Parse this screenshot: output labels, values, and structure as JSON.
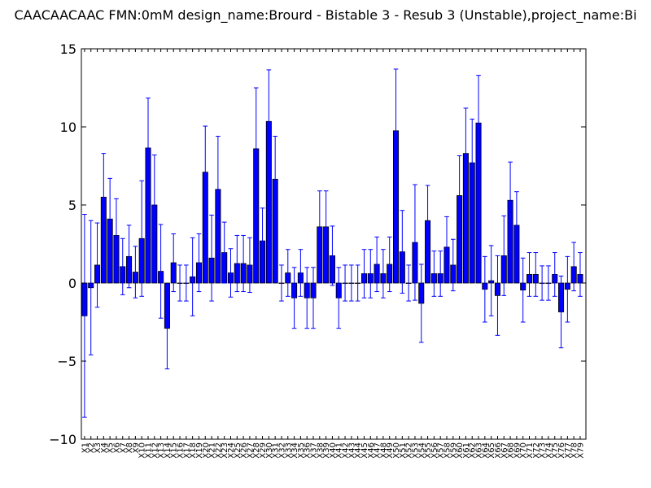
{
  "chart_data": {
    "type": "bar",
    "title": "CAACAACAAC  FMN:0mM  design_name:Brourd - Bistable 3 - Resub 3 (Unstable),project_name:Bi",
    "xlabel": "",
    "ylabel": "",
    "ylim": [
      -10,
      15
    ],
    "yticks": [
      -10,
      -5,
      0,
      5,
      10,
      15
    ],
    "ytick_labels": [
      "−10",
      "−5",
      "0",
      "5",
      "10",
      "15"
    ],
    "grid": false,
    "bar_color": "#0000ff",
    "error_color": "#0000ff",
    "categories": [
      "X1",
      "X2",
      "X3",
      "X4",
      "X5",
      "X6",
      "X7",
      "X8",
      "X9",
      "X10",
      "X11",
      "X12",
      "X13",
      "X14",
      "X15",
      "X16",
      "X17",
      "X18",
      "X19",
      "X20",
      "X21",
      "X22",
      "X23",
      "X24",
      "X25",
      "X26",
      "X27",
      "X28",
      "X29",
      "X30",
      "X31",
      "X32",
      "X33",
      "X34",
      "X35",
      "X36",
      "X37",
      "X38",
      "X39",
      "X40",
      "X41",
      "X42",
      "X43",
      "X44",
      "X45",
      "X46",
      "X47",
      "X48",
      "X49",
      "X50",
      "X51",
      "X52",
      "X53",
      "X54",
      "X55",
      "X56",
      "X57",
      "X58",
      "X59",
      "X60",
      "X61",
      "X62",
      "X63",
      "X64",
      "X65",
      "X66",
      "X67",
      "X68",
      "X69",
      "X70",
      "X71",
      "X72",
      "X73",
      "X74",
      "X75",
      "X76",
      "X77",
      "X78",
      "X79"
    ],
    "values": [
      -2.1,
      -0.3,
      1.15,
      5.5,
      4.1,
      3.05,
      1.05,
      1.7,
      0.7,
      2.85,
      8.65,
      5.0,
      0.75,
      -2.9,
      1.3,
      0.0,
      0.0,
      0.4,
      1.3,
      7.1,
      1.6,
      6.0,
      1.95,
      0.65,
      1.25,
      1.25,
      1.15,
      8.6,
      2.7,
      10.35,
      6.65,
      0.0,
      0.65,
      -0.95,
      0.65,
      -0.95,
      -0.95,
      3.6,
      3.6,
      1.75,
      -0.95,
      0.0,
      0.0,
      0.0,
      0.6,
      0.6,
      1.2,
      0.6,
      1.2,
      9.75,
      2.0,
      0.0,
      2.6,
      -1.3,
      4.0,
      0.6,
      0.6,
      2.3,
      1.15,
      5.6,
      8.3,
      7.7,
      10.25,
      -0.4,
      0.15,
      -0.8,
      1.75,
      5.3,
      3.7,
      -0.45,
      0.55,
      0.55,
      0.0,
      0.0,
      0.55,
      -1.85,
      -0.4,
      1.05,
      0.55
    ],
    "errors": [
      6.5,
      4.3,
      2.7,
      2.8,
      2.6,
      2.35,
      1.8,
      2.0,
      1.65,
      3.7,
      3.2,
      3.2,
      3.0,
      2.6,
      1.85,
      1.15,
      1.15,
      2.5,
      1.85,
      2.95,
      2.75,
      3.4,
      1.95,
      1.55,
      1.8,
      1.8,
      1.75,
      3.9,
      2.1,
      3.3,
      2.75,
      1.15,
      1.5,
      1.95,
      1.5,
      1.95,
      1.95,
      2.3,
      2.3,
      1.9,
      1.95,
      1.15,
      1.15,
      1.15,
      1.55,
      1.55,
      1.75,
      1.55,
      1.75,
      3.95,
      2.65,
      1.15,
      3.7,
      2.5,
      2.25,
      1.45,
      1.45,
      1.95,
      1.65,
      2.55,
      2.9,
      2.8,
      3.05,
      2.1,
      2.25,
      2.55,
      2.55,
      2.45,
      2.15,
      2.05,
      1.4,
      1.4,
      1.1,
      1.1,
      1.4,
      2.3,
      2.1,
      1.55,
      1.4
    ]
  }
}
